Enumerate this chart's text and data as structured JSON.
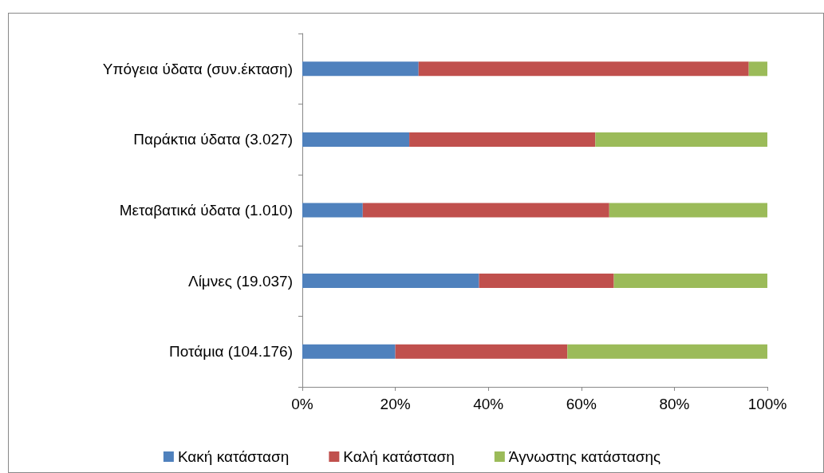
{
  "chart_data": {
    "type": "bar",
    "orientation": "horizontal",
    "stacked": true,
    "categories": [
      "Υπόγεια ύδατα (συν.έκταση)",
      "Παράκτια ύδατα (3.027)",
      "Μεταβατικά ύδατα (1.010)",
      "Λίμνες (19.037)",
      "Ποτάμια (104.176)"
    ],
    "series": [
      {
        "name": "Κακή κατάσταση",
        "color": "#4f81bd",
        "values": [
          25,
          23,
          13,
          38,
          20
        ]
      },
      {
        "name": "Καλή κατάσταση",
        "color": "#c0504d",
        "values": [
          71,
          40,
          53,
          29,
          37
        ]
      },
      {
        "name": "Άγνωστης κατάστασης",
        "color": "#9bbb59",
        "values": [
          4,
          37,
          34,
          33,
          43
        ]
      }
    ],
    "xlim": [
      0,
      100
    ],
    "xticks": [
      {
        "value": 0,
        "label": "0%"
      },
      {
        "value": 20,
        "label": "20%"
      },
      {
        "value": 40,
        "label": "40%"
      },
      {
        "value": 60,
        "label": "60%"
      },
      {
        "value": 80,
        "label": "80%"
      },
      {
        "value": 100,
        "label": "100%"
      }
    ],
    "grid": false,
    "legend": "bottom"
  }
}
